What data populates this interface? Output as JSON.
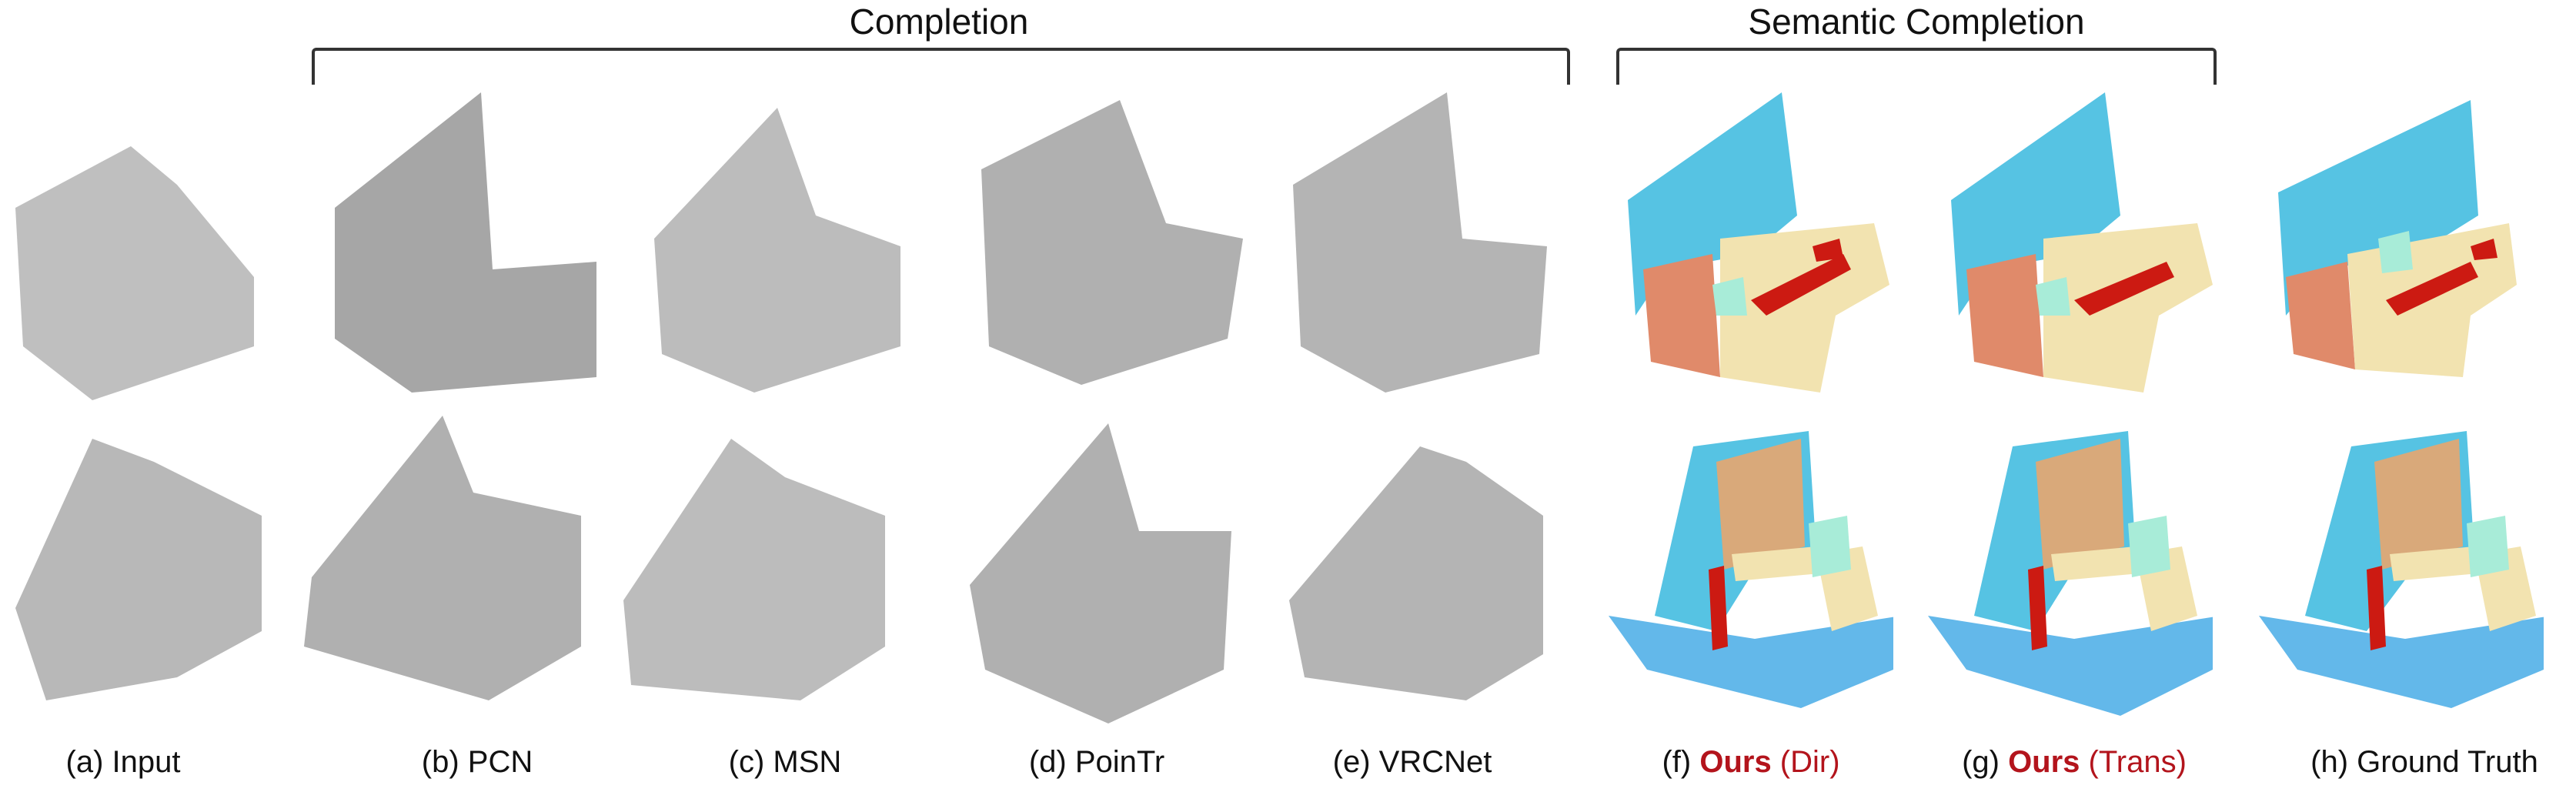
{
  "groups": {
    "completion": "Completion",
    "semantic_completion": "Semantic Completion"
  },
  "captions": [
    {
      "id": "a",
      "prefix": "(a) Input"
    },
    {
      "id": "b",
      "prefix": "(b) PCN"
    },
    {
      "id": "c",
      "prefix": "(c) MSN"
    },
    {
      "id": "d",
      "prefix": "(d) PoinTr"
    },
    {
      "id": "e",
      "prefix": "(e) VRCNet"
    },
    {
      "id": "f",
      "prefix": "(f) ",
      "ours": "Ours",
      "variant": " (Dir)"
    },
    {
      "id": "g",
      "prefix": "(g) ",
      "ours": "Ours",
      "variant": " (Trans)"
    },
    {
      "id": "h",
      "prefix": "(h) Ground Truth"
    }
  ],
  "colors": {
    "gray_points": "#b8b8b8",
    "wall_blue": "#56c3e3",
    "floor_blue": "#63b8ea",
    "furniture_cream": "#f2e3b0",
    "cabinet_orange": "#e08a6a",
    "object_red": "#cc1a12",
    "chair_mint": "#a8ecd8",
    "board_tan": "#d9a97a",
    "ours_red": "#b3141c"
  }
}
